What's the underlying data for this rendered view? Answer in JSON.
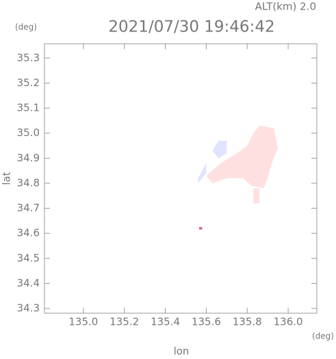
{
  "chart_data": {
    "type": "map",
    "title": "2021/07/30 19:46:42",
    "subtitle": "ALT(km) 2.0",
    "y_unit": "(deg)",
    "x_unit": "(deg)",
    "ylabel": "lat",
    "xlabel": "lon",
    "xlim": [
      134.81,
      136.14
    ],
    "ylim": [
      34.281,
      35.357
    ],
    "xticks": [
      {
        "value": 135,
        "label": "135.0"
      },
      135.2,
      135.4,
      135.6,
      135.8,
      {
        "value": 136,
        "label": "136.0"
      }
    ],
    "yticks": [
      34.3,
      34.4,
      34.5,
      34.6,
      34.7,
      34.8,
      34.9,
      {
        "value": 35,
        "label": "35.0"
      },
      35.1,
      35.2,
      35.3
    ],
    "regions": [
      {
        "color": "#ffe0e0",
        "lon": [
          135.6,
          135.67,
          135.75,
          135.8,
          135.83,
          135.86,
          135.93,
          135.95,
          135.92,
          135.9,
          135.88,
          135.82,
          135.78,
          135.7,
          135.63
        ],
        "lat": [
          34.83,
          34.88,
          34.92,
          34.95,
          35.0,
          35.03,
          35.02,
          34.94,
          34.88,
          34.82,
          34.78,
          34.79,
          34.82,
          34.82,
          34.8
        ]
      },
      {
        "color": "#ffe0e0",
        "lon": [
          135.83,
          135.86,
          135.86,
          135.83
        ],
        "lat": [
          34.78,
          34.78,
          34.72,
          34.72
        ]
      },
      {
        "color": "#e0e4ff",
        "lon": [
          135.63,
          135.66,
          135.7,
          135.7,
          135.66
        ],
        "lat": [
          34.93,
          34.97,
          34.97,
          34.92,
          34.9
        ]
      },
      {
        "color": "#e0e4ff",
        "lon": [
          135.56,
          135.6,
          135.6,
          135.56
        ],
        "lat": [
          34.82,
          34.88,
          34.84,
          34.8
        ]
      },
      {
        "color": "#e06080",
        "lon": [
          135.565,
          135.58,
          135.58,
          135.565
        ],
        "lat": [
          34.615,
          34.615,
          34.625,
          34.625
        ]
      }
    ]
  }
}
